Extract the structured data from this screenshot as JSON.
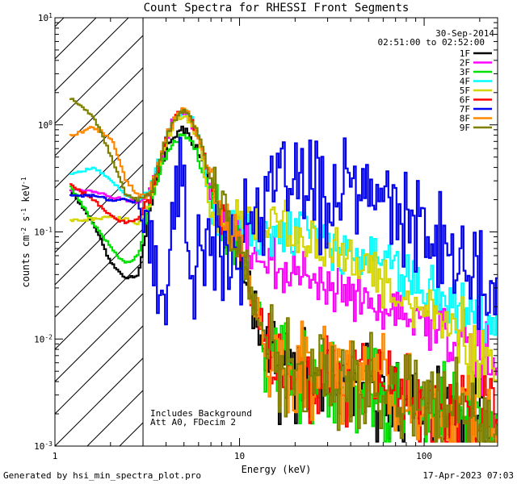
{
  "chart_data": {
    "type": "line",
    "title": "Count Spectra for RHESSI Front Segments",
    "xlabel": "Energy (keV)",
    "ylabel": "counts cm^-2 s^-1 keV^-1",
    "ylabel_parts": {
      "base": "counts cm",
      "exp1": "-2",
      "mid": " s",
      "exp2": "-1",
      "end": " keV",
      "exp3": "-1"
    },
    "xscale": "log",
    "yscale": "log",
    "xlim": [
      1,
      250
    ],
    "ylim": [
      0.001,
      10
    ],
    "x_ticks": [
      {
        "value": 1,
        "label": "1"
      },
      {
        "value": 10,
        "label": "10"
      },
      {
        "value": 100,
        "label": "100"
      }
    ],
    "y_ticks": [
      {
        "value": 0.001,
        "base": "10",
        "exp": "-3"
      },
      {
        "value": 0.01,
        "base": "10",
        "exp": "-2"
      },
      {
        "value": 0.1,
        "base": "10",
        "exp": "-1"
      },
      {
        "value": 1,
        "base": "10",
        "exp": "0"
      },
      {
        "value": 10,
        "base": "10",
        "exp": "1"
      }
    ],
    "excluded_region": {
      "x_from": 1,
      "x_to": 3,
      "fill": "hatched"
    },
    "date": "30-Sep-2014",
    "time_range": "02:51:00 to 02:52:00",
    "annotations": [
      "Includes Background",
      "Att A0, FDecim 2"
    ],
    "legend_position": "top-right",
    "series": [
      {
        "name": "1F",
        "color": "#000000",
        "seed": 11,
        "x": [
          1.2,
          1.6,
          2.0,
          2.4,
          2.8,
          3.2,
          3.6,
          4.0,
          4.4,
          4.8,
          5.2,
          5.6,
          6.0,
          7.0,
          8.0,
          9.0,
          10,
          12,
          15,
          20,
          30,
          40,
          60,
          80,
          100,
          150,
          200,
          250
        ],
        "y": [
          0.25,
          0.12,
          0.05,
          0.037,
          0.04,
          0.15,
          0.35,
          0.6,
          0.8,
          0.9,
          0.85,
          0.7,
          0.5,
          0.25,
          0.12,
          0.08,
          0.06,
          0.02,
          0.006,
          0.004,
          0.0035,
          0.003,
          0.003,
          0.0025,
          0.002,
          0.0018,
          0.0015,
          0.0013
        ]
      },
      {
        "name": "2F",
        "color": "#ff00ff",
        "seed": 12,
        "x": [
          1.2,
          1.6,
          2.0,
          2.4,
          2.8,
          3.2,
          3.6,
          4.0,
          4.4,
          4.8,
          5.2,
          5.6,
          6.0,
          7.0,
          8.0,
          9.0,
          10,
          12,
          15,
          20,
          30,
          40,
          60,
          80,
          100,
          150,
          200,
          250
        ],
        "y": [
          0.25,
          0.24,
          0.21,
          0.2,
          0.19,
          0.22,
          0.4,
          0.8,
          1.1,
          1.3,
          1.2,
          0.95,
          0.7,
          0.18,
          0.12,
          0.1,
          0.09,
          0.06,
          0.05,
          0.04,
          0.03,
          0.025,
          0.02,
          0.017,
          0.015,
          0.01,
          0.008,
          0.006
        ]
      },
      {
        "name": "3F",
        "color": "#00e000",
        "seed": 13,
        "x": [
          1.2,
          1.6,
          2.0,
          2.4,
          2.8,
          3.2,
          3.6,
          4.0,
          4.4,
          4.8,
          5.2,
          5.6,
          6.0,
          7.0,
          8.0,
          9.0,
          10,
          12,
          15,
          20,
          30,
          40,
          60,
          80,
          100,
          150,
          200,
          250
        ],
        "y": [
          0.27,
          0.12,
          0.07,
          0.05,
          0.06,
          0.16,
          0.35,
          0.55,
          0.72,
          0.8,
          0.75,
          0.62,
          0.45,
          0.22,
          0.12,
          0.08,
          0.06,
          0.02,
          0.006,
          0.0045,
          0.004,
          0.0035,
          0.003,
          0.0025,
          0.0022,
          0.0019,
          0.0017,
          0.0015
        ]
      },
      {
        "name": "4F",
        "color": "#00ffff",
        "seed": 14,
        "x": [
          1.2,
          1.6,
          2.0,
          2.4,
          2.8,
          3.2,
          3.6,
          4.0,
          4.4,
          4.8,
          5.2,
          5.6,
          6.0,
          7.0,
          8.0,
          9.0,
          10,
          12,
          15,
          20,
          30,
          40,
          60,
          80,
          100,
          150,
          200,
          250
        ],
        "y": [
          0.35,
          0.4,
          0.3,
          0.22,
          0.2,
          0.25,
          0.45,
          0.85,
          1.2,
          1.35,
          1.25,
          1.0,
          0.75,
          0.12,
          0.1,
          0.1,
          0.12,
          0.1,
          0.09,
          0.1,
          0.08,
          0.06,
          0.05,
          0.04,
          0.035,
          0.02,
          0.015,
          0.012
        ]
      },
      {
        "name": "5F",
        "color": "#d4d400",
        "seed": 15,
        "x": [
          1.2,
          1.6,
          2.0,
          2.4,
          2.8,
          3.2,
          3.6,
          4.0,
          4.4,
          4.8,
          5.2,
          5.6,
          6.0,
          7.0,
          8.0,
          9.0,
          10,
          12,
          15,
          20,
          30,
          40,
          60,
          80,
          100,
          150,
          200,
          250
        ],
        "y": [
          0.13,
          0.13,
          0.14,
          0.13,
          0.12,
          0.18,
          0.38,
          0.75,
          1.05,
          1.25,
          1.15,
          0.9,
          0.65,
          0.12,
          0.11,
          0.12,
          0.13,
          0.12,
          0.12,
          0.1,
          0.07,
          0.05,
          0.035,
          0.025,
          0.02,
          0.01,
          0.007,
          0.005
        ]
      },
      {
        "name": "6F",
        "color": "#ff0000",
        "seed": 16,
        "x": [
          1.2,
          1.6,
          2.0,
          2.4,
          2.8,
          3.2,
          3.6,
          4.0,
          4.4,
          4.8,
          5.2,
          5.6,
          6.0,
          7.0,
          8.0,
          9.0,
          10,
          12,
          15,
          20,
          30,
          40,
          60,
          80,
          100,
          150,
          200,
          250
        ],
        "y": [
          0.28,
          0.2,
          0.14,
          0.12,
          0.13,
          0.2,
          0.4,
          0.85,
          1.2,
          1.45,
          1.3,
          1.0,
          0.72,
          0.3,
          0.15,
          0.1,
          0.07,
          0.02,
          0.006,
          0.005,
          0.0045,
          0.004,
          0.0035,
          0.003,
          0.0025,
          0.002,
          0.0018,
          0.0015
        ]
      },
      {
        "name": "7F",
        "color": "#0000ee",
        "seed": 17,
        "x": [
          1.2,
          1.6,
          2.0,
          2.4,
          2.8,
          3.2,
          3.6,
          4.0,
          4.4,
          4.8,
          5.2,
          5.6,
          6.0,
          7.0,
          8.0,
          9.0,
          10,
          12,
          15,
          20,
          30,
          40,
          60,
          80,
          100,
          150,
          200,
          250
        ],
        "y": [
          0.22,
          0.22,
          0.2,
          0.2,
          0.19,
          0.05,
          0.05,
          0.03,
          0.2,
          0.3,
          0.12,
          0.01,
          0.15,
          0.08,
          0.05,
          0.09,
          0.07,
          0.18,
          0.2,
          0.3,
          0.2,
          0.25,
          0.2,
          0.12,
          0.08,
          0.06,
          0.03,
          0.02
        ]
      },
      {
        "name": "8F",
        "color": "#ff8800",
        "seed": 18,
        "x": [
          1.2,
          1.6,
          2.0,
          2.4,
          2.8,
          3.2,
          3.6,
          4.0,
          4.4,
          4.8,
          5.2,
          5.6,
          6.0,
          7.0,
          8.0,
          9.0,
          10,
          12,
          15,
          20,
          30,
          40,
          60,
          80,
          100,
          150,
          200,
          250
        ],
        "y": [
          0.8,
          0.95,
          0.75,
          0.3,
          0.22,
          0.23,
          0.42,
          0.8,
          1.15,
          1.4,
          1.3,
          1.0,
          0.72,
          0.3,
          0.15,
          0.1,
          0.07,
          0.02,
          0.006,
          0.005,
          0.0045,
          0.004,
          0.0035,
          0.003,
          0.0025,
          0.002,
          0.0018,
          0.0015
        ]
      },
      {
        "name": "9F",
        "color": "#808000",
        "seed": 19,
        "x": [
          1.2,
          1.6,
          2.0,
          2.4,
          2.8,
          3.2,
          3.6,
          4.0,
          4.4,
          4.8,
          5.2,
          5.6,
          6.0,
          7.0,
          8.0,
          9.0,
          10,
          12,
          15,
          20,
          30,
          40,
          60,
          80,
          100,
          150,
          200,
          250
        ],
        "y": [
          1.8,
          1.2,
          0.5,
          0.22,
          0.2,
          0.22,
          0.42,
          0.8,
          1.15,
          1.4,
          1.3,
          1.0,
          0.72,
          0.3,
          0.15,
          0.1,
          0.07,
          0.02,
          0.006,
          0.005,
          0.0045,
          0.004,
          0.0035,
          0.003,
          0.0025,
          0.002,
          0.0018,
          0.0015
        ]
      }
    ]
  },
  "footer": {
    "generated_by": "Generated by hsi_min_spectra_plot.pro",
    "timestamp": "17-Apr-2023 07:03"
  }
}
